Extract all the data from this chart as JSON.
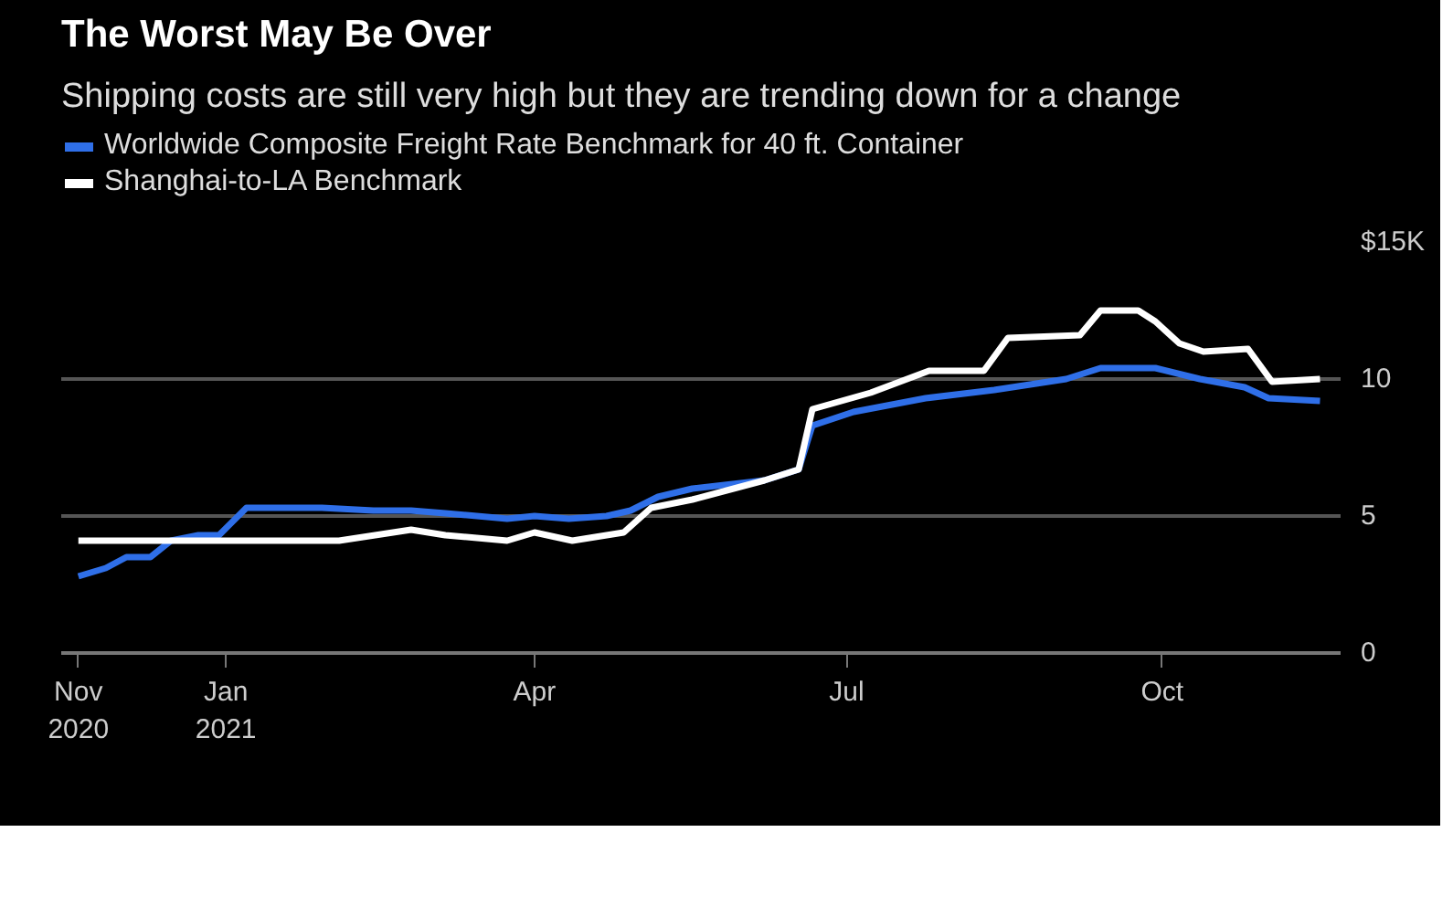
{
  "chart_data": {
    "type": "line",
    "title": "The Worst May Be Over",
    "subtitle": "Shipping costs are still very high but they are trending down for a change",
    "series": [
      {
        "name": "Worldwide Composite Freight Rate Benchmark for 40 ft. Container",
        "color": "#2f6fe8",
        "x": [
          "2020-11-19",
          "2020-11-27",
          "2020-12-03",
          "2020-12-10",
          "2020-12-16",
          "2020-12-24",
          "2020-12-30",
          "2021-01-07",
          "2021-01-16",
          "2021-01-29",
          "2021-02-13",
          "2021-02-24",
          "2021-03-06",
          "2021-03-24",
          "2021-04-01",
          "2021-04-11",
          "2021-04-22",
          "2021-04-29",
          "2021-05-07",
          "2021-05-17",
          "2021-06-07",
          "2021-06-17",
          "2021-06-21",
          "2021-07-03",
          "2021-07-24",
          "2021-08-13",
          "2021-09-03",
          "2021-09-13",
          "2021-09-29",
          "2021-10-12",
          "2021-10-25",
          "2021-11-01",
          "2021-11-16"
        ],
        "values": [
          2.8,
          3.1,
          3.5,
          3.5,
          4.1,
          4.3,
          4.3,
          5.3,
          5.3,
          5.3,
          5.2,
          5.2,
          5.1,
          4.9,
          5.0,
          4.9,
          5.0,
          5.2,
          5.7,
          6.0,
          6.3,
          6.7,
          8.3,
          8.8,
          9.3,
          9.6,
          10.0,
          10.4,
          10.4,
          10.0,
          9.7,
          9.3,
          9.2
        ]
      },
      {
        "name": "Shanghai-to-LA Benchmark",
        "color": "#ffffff",
        "x": [
          "2020-11-19",
          "2021-02-03",
          "2021-02-24",
          "2021-03-06",
          "2021-03-24",
          "2021-04-01",
          "2021-04-12",
          "2021-04-27",
          "2021-05-05",
          "2021-05-17",
          "2021-06-07",
          "2021-06-17",
          "2021-06-21",
          "2021-07-08",
          "2021-07-25",
          "2021-08-10",
          "2021-08-17",
          "2021-09-07",
          "2021-09-13",
          "2021-09-24",
          "2021-09-29",
          "2021-10-06",
          "2021-10-13",
          "2021-10-26",
          "2021-11-02",
          "2021-11-16"
        ],
        "values": [
          4.1,
          4.1,
          4.5,
          4.3,
          4.1,
          4.4,
          4.1,
          4.4,
          5.3,
          5.6,
          6.3,
          6.7,
          8.9,
          9.5,
          10.3,
          10.3,
          11.5,
          11.6,
          12.5,
          12.5,
          12.1,
          11.3,
          11.0,
          11.1,
          9.9,
          10.0
        ]
      }
    ],
    "xlim": [
      "2020-11-14",
      "2021-11-22"
    ],
    "xticks": [
      {
        "value": "2020-11-19",
        "label": "Nov\n2020"
      },
      {
        "value": "2021-01-01",
        "label": "Jan\n2021"
      },
      {
        "value": "2021-04-01",
        "label": "Apr"
      },
      {
        "value": "2021-07-01",
        "label": "Jul"
      },
      {
        "value": "2021-10-01",
        "label": "Oct"
      }
    ],
    "ylim": [
      0,
      15
    ],
    "yticks": [
      0,
      5,
      10,
      {
        "value": 15,
        "label": "$15K"
      }
    ],
    "grid": "y",
    "legend": "top",
    "line_style": "solid",
    "marker": "none"
  }
}
